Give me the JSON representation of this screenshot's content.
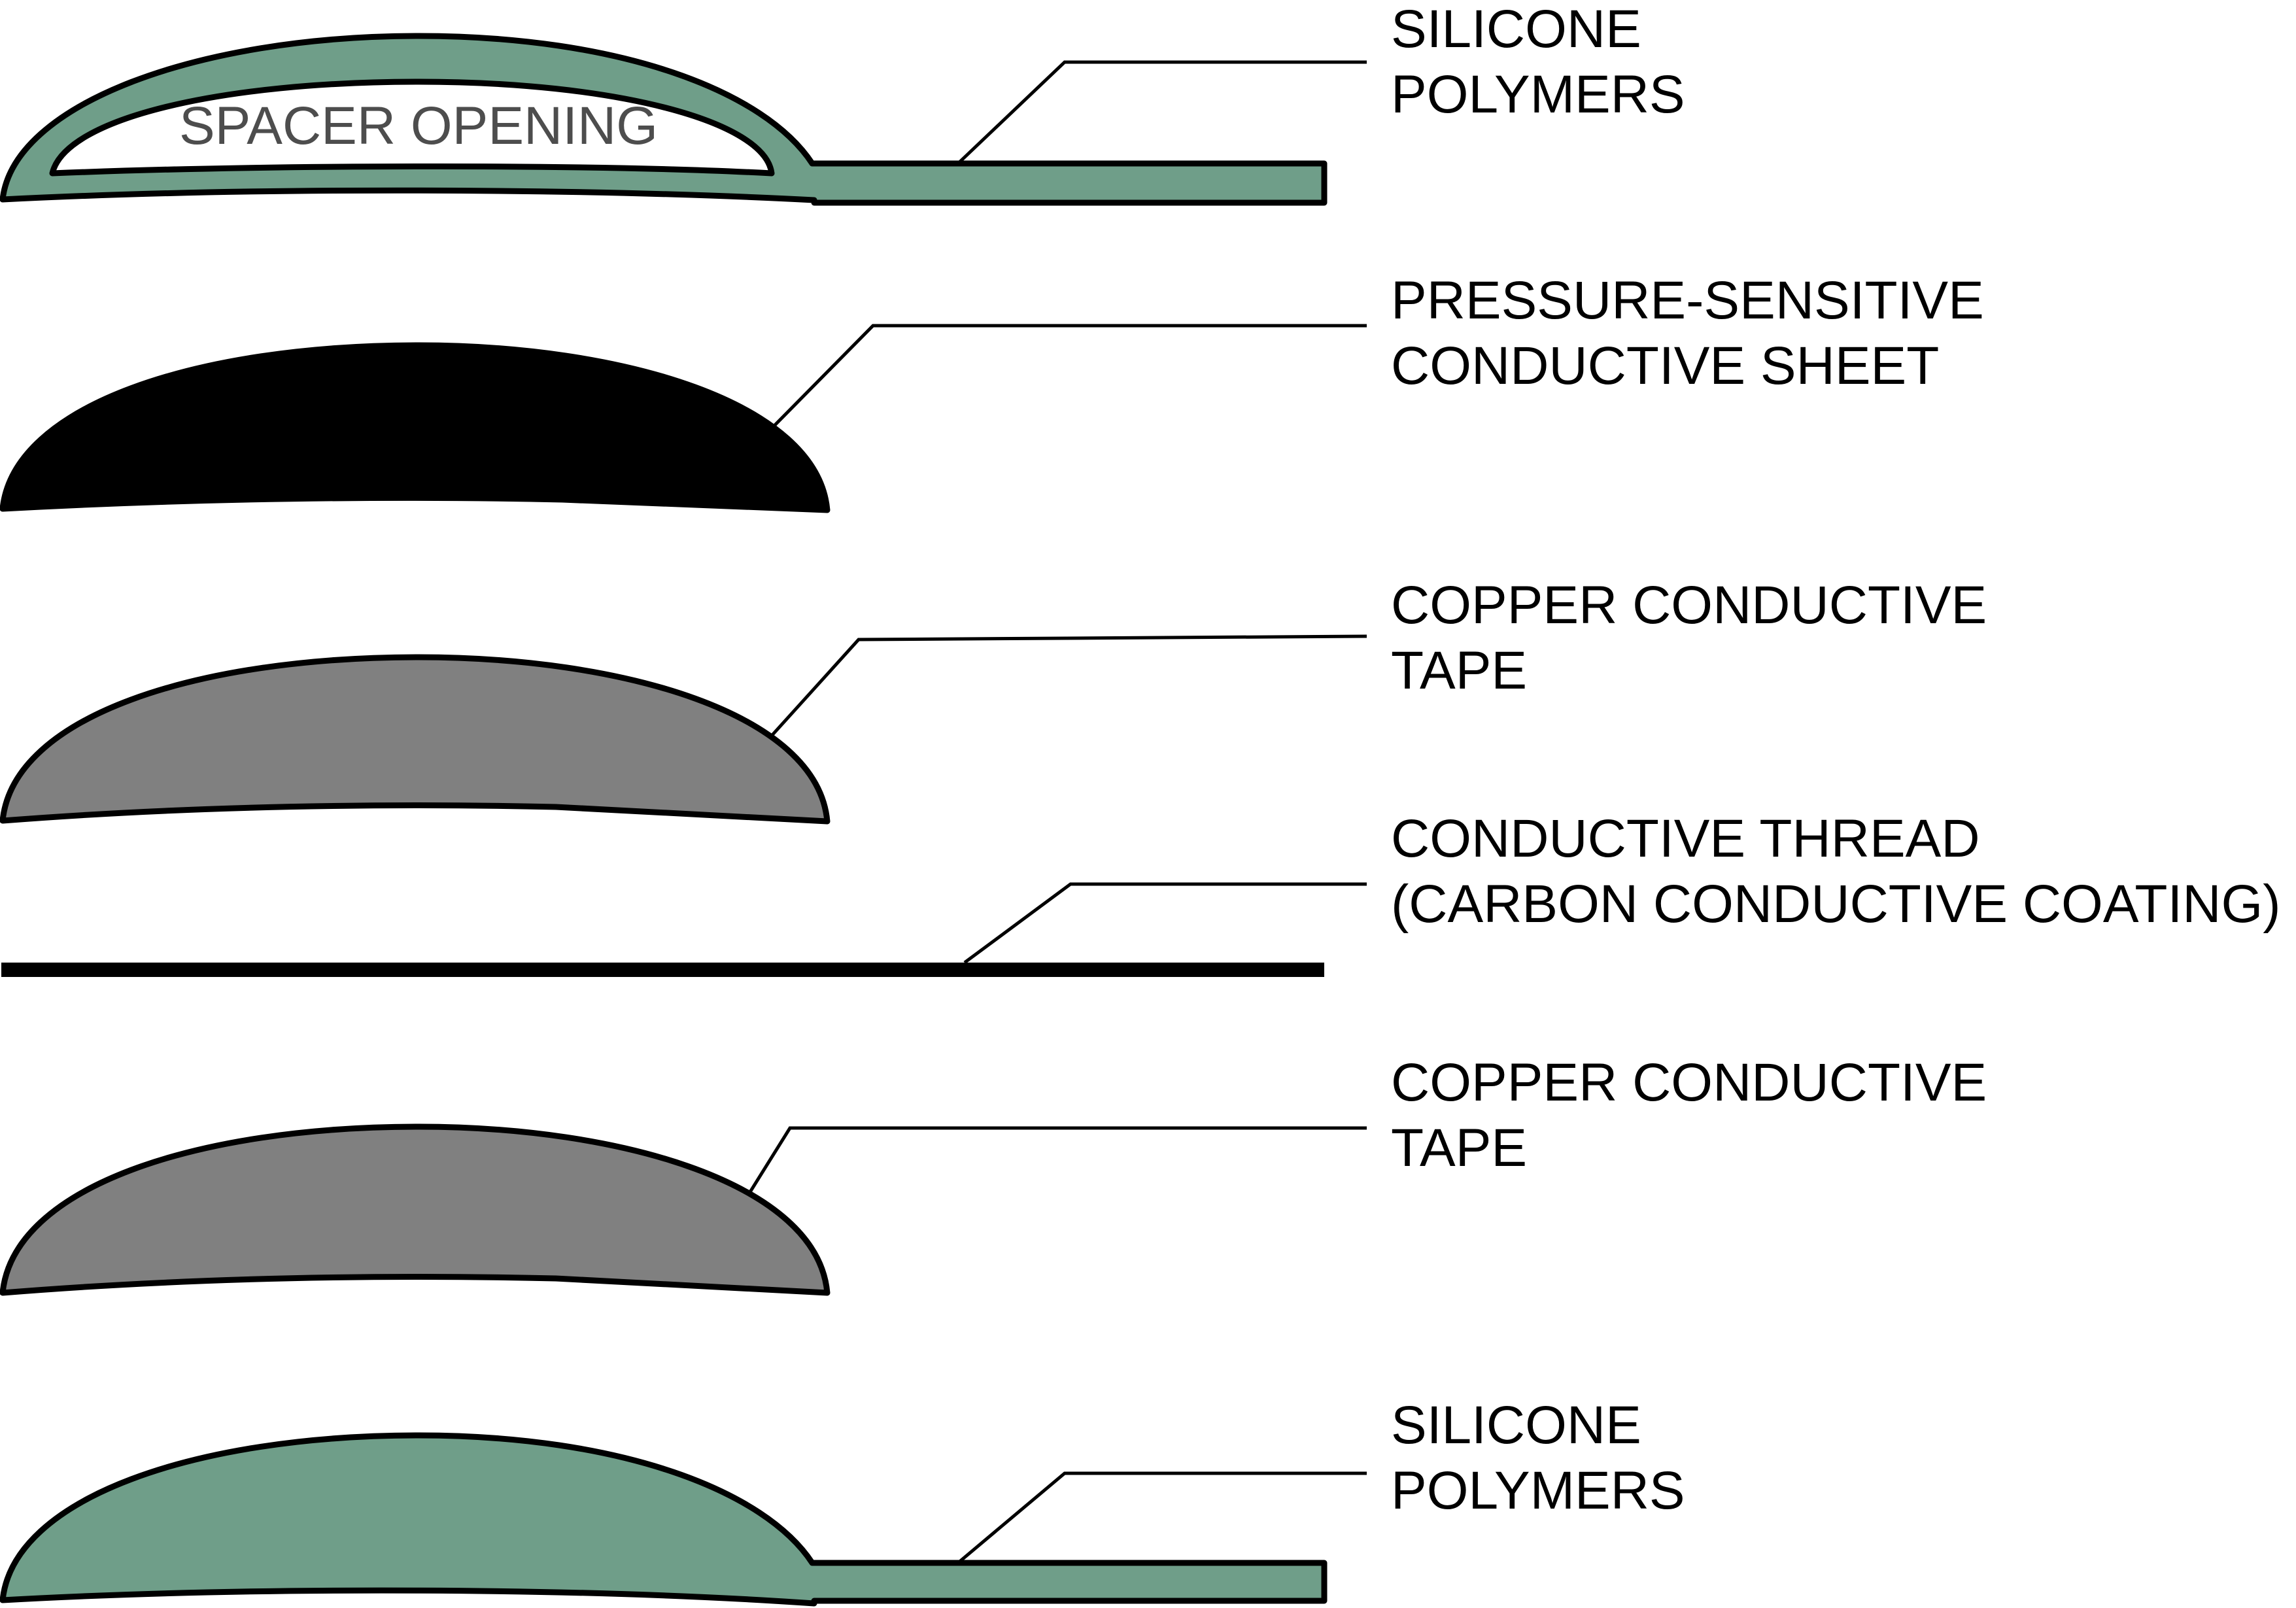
{
  "colors": {
    "silicone": "#6f9e89",
    "conductive_sheet": "#000000",
    "copper_tape": "#808080",
    "thread": "#000000",
    "outline": "#000000",
    "background": "#ffffff"
  },
  "layers": [
    {
      "id": "silicone-top",
      "lines": [
        "SILICONE",
        "POLYMERS"
      ],
      "inner_label": "SPACER OPENING"
    },
    {
      "id": "conductive-sheet",
      "lines": [
        "PRESSURE-SENSITIVE",
        "CONDUCTIVE SHEET"
      ]
    },
    {
      "id": "copper-tape-top",
      "lines": [
        "COPPER CONDUCTIVE",
        "TAPE"
      ]
    },
    {
      "id": "conductive-thread",
      "lines": [
        "CONDUCTIVE THREAD",
        "(CARBON CONDUCTIVE COATING)"
      ]
    },
    {
      "id": "copper-tape-bottom",
      "lines": [
        "COPPER CONDUCTIVE",
        "TAPE"
      ]
    },
    {
      "id": "silicone-bottom",
      "lines": [
        "SILICONE",
        "POLYMERS"
      ]
    }
  ]
}
